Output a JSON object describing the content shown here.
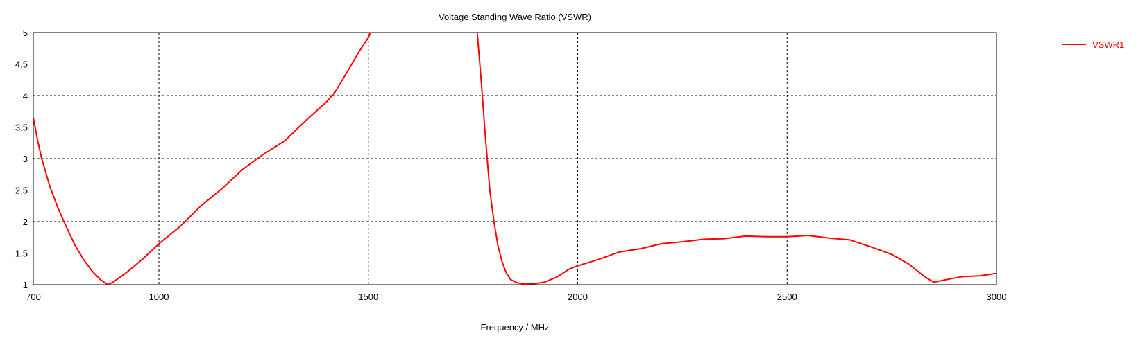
{
  "chart_data": {
    "type": "line",
    "title": "Voltage Standing Wave Ratio (VSWR)",
    "xlabel": "Frequency / MHz",
    "ylabel": "",
    "xlim": [
      700,
      3000
    ],
    "ylim": [
      1,
      5
    ],
    "xticks": [
      700,
      1000,
      1500,
      2000,
      2500,
      3000
    ],
    "yticks": [
      1,
      1.5,
      2,
      2.5,
      3,
      3.5,
      4,
      4.5,
      5
    ],
    "grid": true,
    "legend_position": "top-right",
    "series": [
      {
        "name": "VSWR1",
        "color": "#ff0000",
        "points": [
          [
            700,
            3.65
          ],
          [
            710,
            3.3
          ],
          [
            720,
            3.0
          ],
          [
            740,
            2.55
          ],
          [
            760,
            2.2
          ],
          [
            780,
            1.9
          ],
          [
            800,
            1.62
          ],
          [
            820,
            1.4
          ],
          [
            840,
            1.22
          ],
          [
            860,
            1.08
          ],
          [
            878,
            1.0
          ],
          [
            890,
            1.04
          ],
          [
            920,
            1.18
          ],
          [
            960,
            1.4
          ],
          [
            1000,
            1.65
          ],
          [
            1050,
            1.92
          ],
          [
            1100,
            2.25
          ],
          [
            1150,
            2.52
          ],
          [
            1200,
            2.83
          ],
          [
            1250,
            3.07
          ],
          [
            1300,
            3.28
          ],
          [
            1350,
            3.6
          ],
          [
            1400,
            3.9
          ],
          [
            1420,
            4.05
          ],
          [
            1450,
            4.38
          ],
          [
            1480,
            4.72
          ],
          [
            1500,
            4.92
          ],
          [
            1505,
            5.0
          ]
        ]
      },
      {
        "name": "",
        "color": "#ff0000",
        "points": [
          [
            1760,
            5.0
          ],
          [
            1770,
            4.2
          ],
          [
            1780,
            3.3
          ],
          [
            1790,
            2.5
          ],
          [
            1800,
            2.0
          ],
          [
            1810,
            1.6
          ],
          [
            1820,
            1.35
          ],
          [
            1830,
            1.18
          ],
          [
            1840,
            1.08
          ],
          [
            1855,
            1.03
          ],
          [
            1875,
            1.01
          ],
          [
            1900,
            1.02
          ],
          [
            1920,
            1.04
          ],
          [
            1950,
            1.12
          ],
          [
            1980,
            1.25
          ],
          [
            2000,
            1.3
          ],
          [
            2050,
            1.4
          ],
          [
            2100,
            1.52
          ],
          [
            2150,
            1.57
          ],
          [
            2200,
            1.65
          ],
          [
            2250,
            1.68
          ],
          [
            2300,
            1.72
          ],
          [
            2350,
            1.73
          ],
          [
            2400,
            1.77
          ],
          [
            2450,
            1.76
          ],
          [
            2500,
            1.76
          ],
          [
            2550,
            1.78
          ],
          [
            2600,
            1.74
          ],
          [
            2650,
            1.71
          ],
          [
            2700,
            1.6
          ],
          [
            2750,
            1.48
          ],
          [
            2790,
            1.33
          ],
          [
            2830,
            1.12
          ],
          [
            2850,
            1.04
          ],
          [
            2880,
            1.08
          ],
          [
            2920,
            1.13
          ],
          [
            2960,
            1.14
          ],
          [
            3000,
            1.18
          ]
        ]
      }
    ]
  }
}
